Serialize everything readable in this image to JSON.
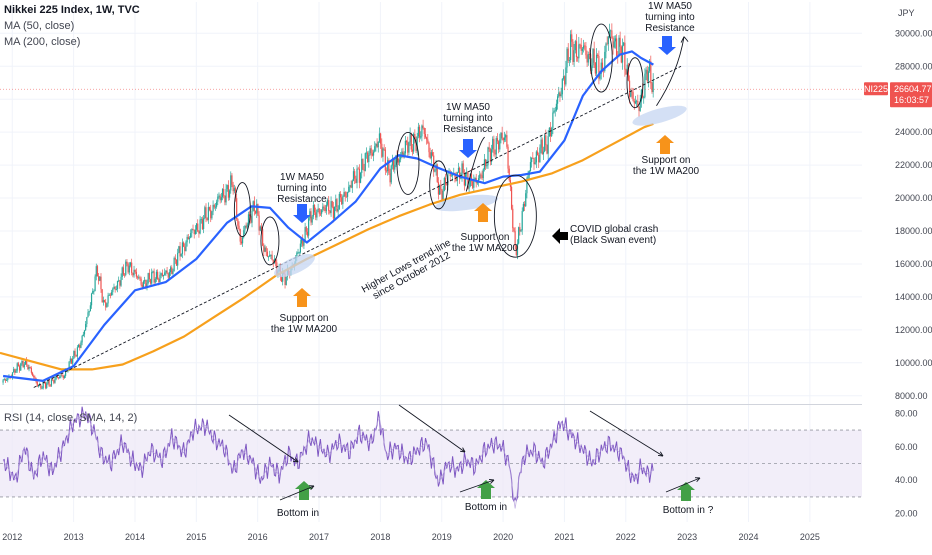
{
  "header": {
    "title": "Nikkei 225 Index, 1W, TVC",
    "ma50_label": "MA (50, close)",
    "ma200_label": "MA (200, close)",
    "rsi_label": "RSI (14, close, SMA, 14, 2)"
  },
  "price_axis": {
    "unit": "JPY",
    "ticks": [
      "30000.00",
      "28000.00",
      "26000.00",
      "24000.00",
      "22000.00",
      "20000.00",
      "18000.00",
      "16000.00",
      "14000.00",
      "12000.00",
      "10000.00",
      "8000.00"
    ],
    "ticks_num": [
      30000,
      28000,
      26000,
      24000,
      22000,
      20000,
      18000,
      16000,
      14000,
      12000,
      10000,
      8000
    ],
    "ylim": [
      7500,
      31900
    ],
    "symbol_badge": "NI225",
    "last_price": "26604.77",
    "countdown": "16:03:57"
  },
  "rsi_axis": {
    "ticks": [
      "80.00",
      "60.00",
      "40.00",
      "20.00"
    ],
    "ticks_num": [
      80,
      60,
      40,
      20
    ],
    "ylim": [
      15,
      85
    ],
    "band": [
      30,
      70
    ]
  },
  "time_axis": {
    "labels": [
      "2012",
      "2013",
      "2014",
      "2015",
      "2016",
      "2017",
      "2018",
      "2019",
      "2020",
      "2021",
      "2022",
      "2023",
      "2024",
      "2025"
    ],
    "years": [
      2012,
      2013,
      2014,
      2015,
      2016,
      2017,
      2018,
      2019,
      2020,
      2021,
      2022,
      2023,
      2024,
      2025
    ],
    "xlim": [
      2011.8,
      2025.85
    ]
  },
  "annotations": {
    "resistance_1": [
      "1W MA50",
      "turning into",
      "Resistance"
    ],
    "resistance_2": [
      "1W MA50",
      "turning into",
      "Resistance"
    ],
    "resistance_3": [
      "1W MA50",
      "turning into",
      "Resistance"
    ],
    "support_1": [
      "Support on",
      "the 1W MA200"
    ],
    "support_2": [
      "Support on",
      "the 1W MA200"
    ],
    "support_3": [
      "Support on",
      "the 1W MA200"
    ],
    "trendline": [
      "Higher Lows trend-line",
      "since October 2012"
    ],
    "covid": [
      "COVID global crash",
      "(Black Swan event)"
    ],
    "bottom_1": "Bottom in",
    "bottom_2": "Bottom in",
    "bottom_3": "Bottom in ?"
  },
  "colors": {
    "ma50": "#2962ff",
    "ma200": "#f7a01c",
    "candle_up": "#26a69a",
    "candle_down": "#ef5350",
    "rsi": "#7e57c2",
    "rsi_band": "#ede7f6",
    "support_arrow": "#f7931a",
    "resistance_arrow": "#2962ff",
    "bottom_arrow": "#43a047",
    "badge": "#ef5350",
    "highlight": "#c5d5f2"
  },
  "chart_data": {
    "type": "line",
    "title": "Nikkei 225 Index, 1W, TVC",
    "xlabel": "",
    "ylabel": "",
    "ylim": [
      7500,
      31900
    ],
    "grid": false,
    "series": [
      {
        "name": "Nikkei 225 Index",
        "x": [
          2011.85,
          2012.2,
          2012.45,
          2012.85,
          2013.15,
          2013.38,
          2013.5,
          2013.9,
          2014.1,
          2014.3,
          2014.55,
          2014.85,
          2015.1,
          2015.45,
          2015.6,
          2015.72,
          2015.95,
          2016.1,
          2016.45,
          2016.7,
          2016.85,
          2017.0,
          2017.3,
          2017.75,
          2017.97,
          2018.15,
          2018.35,
          2018.72,
          2018.98,
          2019.15,
          2019.35,
          2019.55,
          2019.85,
          2020.05,
          2020.2,
          2020.45,
          2020.7,
          2020.95,
          2021.1,
          2021.3,
          2021.6,
          2021.72,
          2021.95,
          2022.1,
          2022.2,
          2022.35,
          2022.45
        ],
        "values": [
          8800,
          10100,
          8500,
          9300,
          11500,
          15600,
          13500,
          16000,
          14800,
          15200,
          15400,
          17500,
          18600,
          20300,
          20800,
          17300,
          19700,
          17000,
          15000,
          17000,
          18800,
          19300,
          19500,
          22200,
          23500,
          21500,
          22800,
          24100,
          20300,
          21500,
          21400,
          20800,
          23200,
          23700,
          16500,
          22200,
          23200,
          26800,
          29100,
          29000,
          27700,
          29900,
          28800,
          26200,
          25300,
          27800,
          26600
        ]
      },
      {
        "name": "MA (50, close)",
        "x": [
          2011.85,
          2012.5,
          2013.0,
          2013.5,
          2014.0,
          2014.5,
          2015.0,
          2015.5,
          2015.9,
          2016.2,
          2016.5,
          2016.8,
          2017.2,
          2017.6,
          2018.0,
          2018.3,
          2018.6,
          2018.9,
          2019.3,
          2019.7,
          2020.0,
          2020.3,
          2020.6,
          2021.0,
          2021.3,
          2021.6,
          2021.9,
          2022.1,
          2022.25,
          2022.45
        ],
        "values": [
          9200,
          8900,
          9800,
          12300,
          14400,
          14900,
          16300,
          18500,
          19500,
          19400,
          18200,
          17300,
          18500,
          19800,
          21800,
          22600,
          22400,
          21900,
          21300,
          20900,
          21300,
          21400,
          21600,
          23500,
          26200,
          27700,
          28700,
          28900,
          28500,
          28100
        ]
      },
      {
        "name": "MA (200, close)",
        "x": [
          2011.8,
          2012.3,
          2012.8,
          2013.3,
          2013.8,
          2014.3,
          2014.8,
          2015.3,
          2015.8,
          2016.3,
          2016.8,
          2017.3,
          2017.8,
          2018.3,
          2018.8,
          2019.3,
          2019.8,
          2020.3,
          2020.8,
          2021.3,
          2021.8,
          2022.3,
          2022.45
        ],
        "values": [
          10600,
          10100,
          9600,
          9600,
          9900,
          10700,
          11600,
          12800,
          14000,
          15300,
          16300,
          17200,
          18100,
          18900,
          19600,
          20200,
          20600,
          21000,
          21500,
          22300,
          23300,
          24300,
          24500
        ]
      },
      {
        "name": "RSI (14, close, SMA, 14, 2)",
        "x": [
          2011.85,
          2012.05,
          2012.2,
          2012.35,
          2012.5,
          2012.65,
          2012.85,
          2013.0,
          2013.2,
          2013.35,
          2013.45,
          2013.6,
          2013.8,
          2013.95,
          2014.1,
          2014.25,
          2014.45,
          2014.6,
          2014.8,
          2014.95,
          2015.15,
          2015.3,
          2015.45,
          2015.6,
          2015.75,
          2015.9,
          2016.05,
          2016.2,
          2016.35,
          2016.5,
          2016.65,
          2016.85,
          2017.0,
          2017.15,
          2017.3,
          2017.5,
          2017.65,
          2017.85,
          2017.98,
          2018.1,
          2018.25,
          2018.45,
          2018.6,
          2018.75,
          2018.95,
          2019.1,
          2019.25,
          2019.4,
          2019.55,
          2019.7,
          2019.85,
          2019.98,
          2020.1,
          2020.2,
          2020.25,
          2020.35,
          2020.5,
          2020.65,
          2020.8,
          2020.95,
          2021.05,
          2021.2,
          2021.35,
          2021.45,
          2021.6,
          2021.72,
          2021.85,
          2021.95,
          2022.05,
          2022.15,
          2022.25,
          2022.35,
          2022.45
        ],
        "values": [
          52,
          40,
          60,
          42,
          55,
          45,
          62,
          75,
          80,
          68,
          55,
          50,
          63,
          52,
          46,
          58,
          52,
          66,
          56,
          70,
          73,
          64,
          60,
          45,
          58,
          52,
          40,
          50,
          43,
          56,
          50,
          65,
          60,
          55,
          63,
          57,
          68,
          62,
          78,
          55,
          60,
          52,
          58,
          63,
          38,
          50,
          46,
          52,
          48,
          58,
          62,
          60,
          50,
          22,
          40,
          55,
          58,
          50,
          62,
          75,
          70,
          63,
          56,
          50,
          58,
          62,
          58,
          55,
          45,
          40,
          48,
          44,
          46
        ]
      }
    ],
    "annotations": [
      "1W MA50 turning into Resistance",
      "Support on the 1W MA200",
      "Higher Lows trend-line since October 2012",
      "COVID global crash (Black Swan event)",
      "Bottom in",
      "Bottom in ?"
    ]
  }
}
